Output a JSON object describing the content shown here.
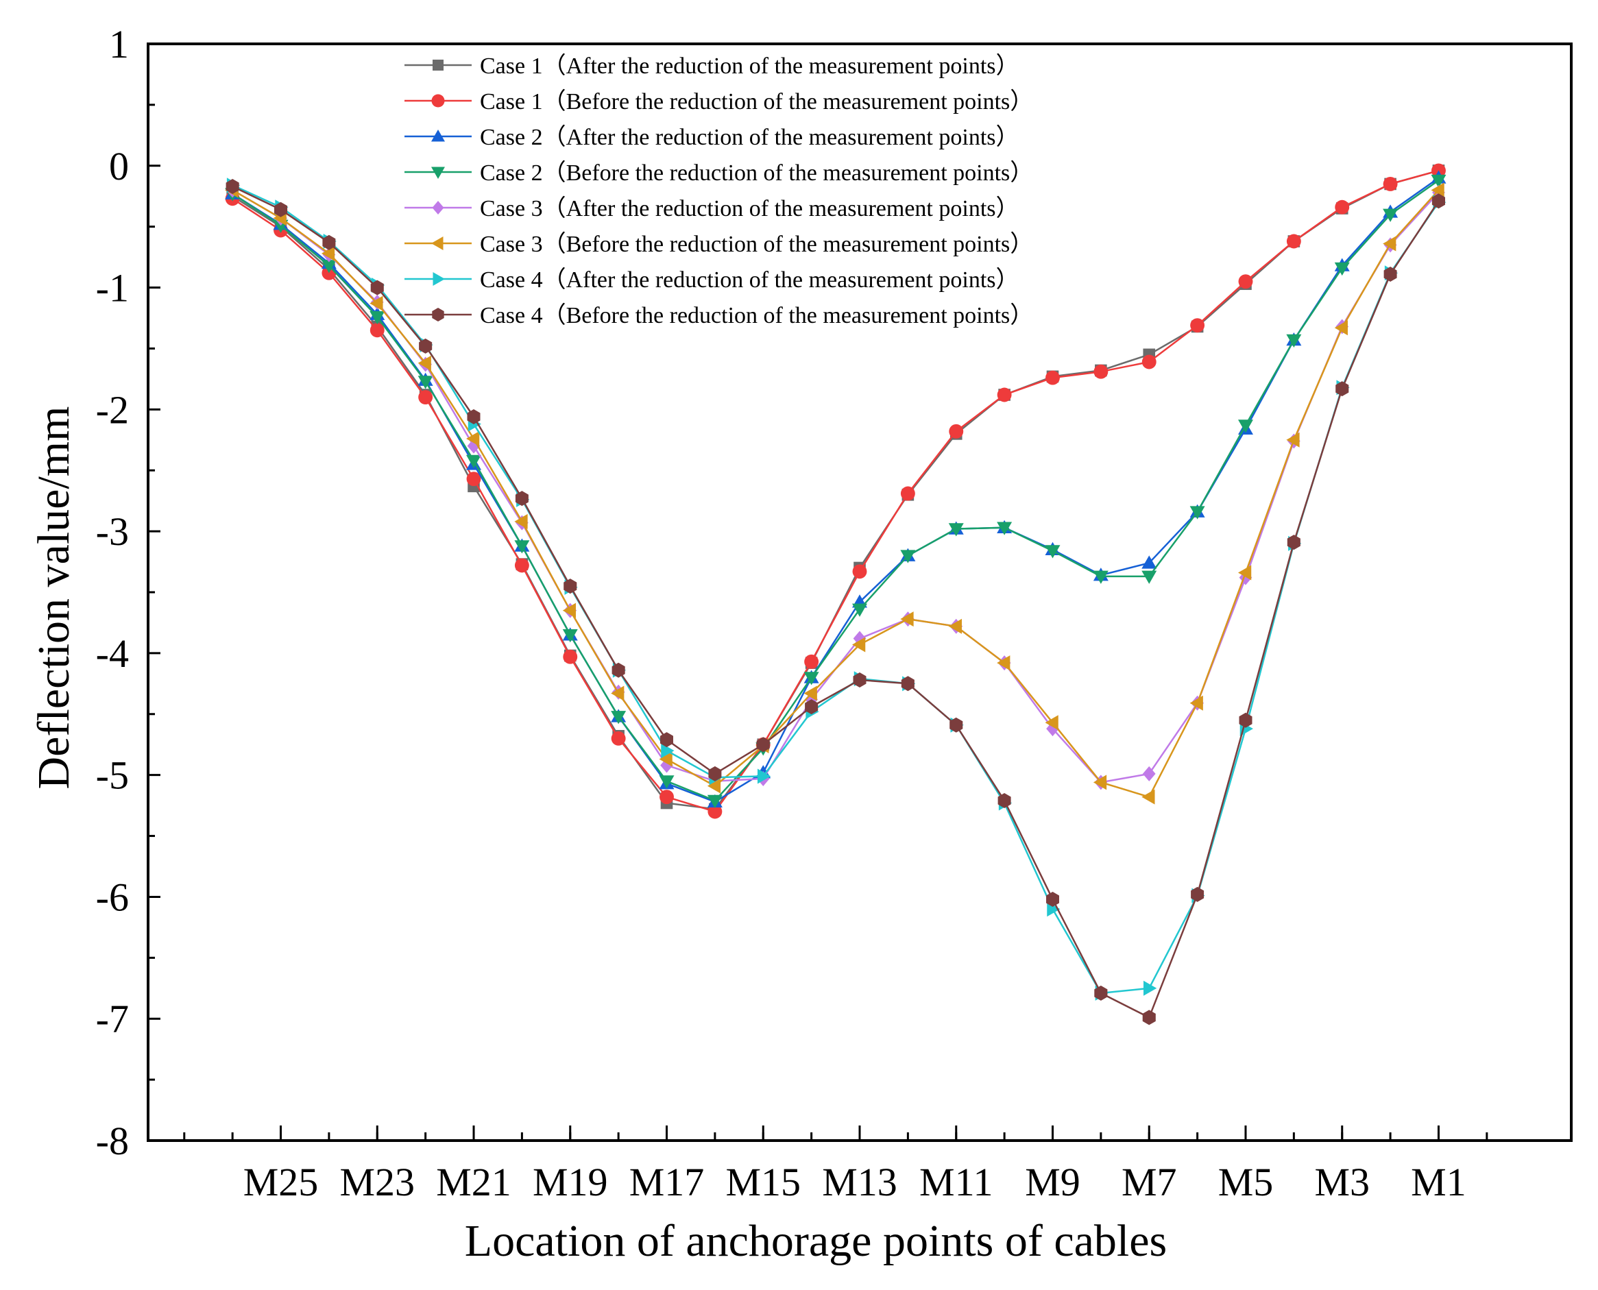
{
  "chart_data": {
    "type": "line",
    "title": "",
    "xlabel": "Location of anchorage points of cables",
    "ylabel": "Deflection value/mm",
    "ylim": [
      -8,
      1
    ],
    "yticks": [
      "1",
      "0",
      "-1",
      "-2",
      "-3",
      "-4",
      "-5",
      "-6",
      "-7",
      "-8"
    ],
    "xticks": [
      "M25",
      "M23",
      "M21",
      "M19",
      "M17",
      "M15",
      "M13",
      "M11",
      "M9",
      "M7",
      "M5",
      "M3",
      "M1"
    ],
    "x": [
      26,
      25,
      24,
      23,
      22,
      21,
      20,
      19,
      18,
      17,
      16,
      15,
      14,
      13,
      12,
      11,
      10,
      9,
      8,
      7,
      6,
      5,
      4,
      3,
      2,
      1
    ],
    "legend_position": "top-center",
    "series": [
      {
        "name": "Case 1（After the reduction of the measurement points）",
        "color": "#6b6b6b",
        "marker": "square",
        "values": [
          -0.25,
          -0.5,
          -0.85,
          -1.32,
          -1.88,
          -2.63,
          -3.27,
          -4.02,
          -4.68,
          -5.23,
          -5.28,
          -4.75,
          -4.08,
          -3.3,
          -2.7,
          -2.2,
          -1.88,
          -1.73,
          -1.68,
          -1.55,
          -1.32,
          -0.97,
          -0.62,
          -0.35,
          -0.15,
          -0.04
        ]
      },
      {
        "name": "Case 1（Before  the reduction of the measurement points）",
        "color": "#ee3b3b",
        "marker": "circle",
        "values": [
          -0.27,
          -0.53,
          -0.88,
          -1.35,
          -1.9,
          -2.57,
          -3.28,
          -4.03,
          -4.7,
          -5.18,
          -5.3,
          -4.75,
          -4.07,
          -3.33,
          -2.69,
          -2.18,
          -1.88,
          -1.74,
          -1.69,
          -1.61,
          -1.31,
          -0.95,
          -0.62,
          -0.34,
          -0.15,
          -0.04
        ]
      },
      {
        "name": "Case 2（After  the reduction of the measurement points）",
        "color": "#1560d6",
        "marker": "triangle-up",
        "values": [
          -0.23,
          -0.48,
          -0.8,
          -1.22,
          -1.76,
          -2.45,
          -3.12,
          -3.85,
          -4.52,
          -5.07,
          -5.22,
          -4.98,
          -4.2,
          -3.58,
          -3.2,
          -2.98,
          -2.97,
          -3.15,
          -3.36,
          -3.26,
          -2.84,
          -2.16,
          -1.43,
          -0.82,
          -0.38,
          -0.1
        ]
      },
      {
        "name": "Case 2（Before  the reduction of the measurement points）",
        "color": "#18a06a",
        "marker": "triangle-down",
        "values": [
          -0.23,
          -0.49,
          -0.82,
          -1.24,
          -1.77,
          -2.42,
          -3.12,
          -3.85,
          -4.52,
          -5.05,
          -5.21,
          -4.78,
          -4.2,
          -3.64,
          -3.2,
          -2.98,
          -2.97,
          -3.16,
          -3.37,
          -3.37,
          -2.84,
          -2.13,
          -1.43,
          -0.84,
          -0.4,
          -0.12
        ]
      },
      {
        "name": "Case 3（After  the reduction of the measurement points）",
        "color": "#c07ae8",
        "marker": "diamond",
        "values": [
          -0.2,
          -0.43,
          -0.73,
          -1.12,
          -1.63,
          -2.3,
          -2.93,
          -3.65,
          -4.32,
          -4.92,
          -5.05,
          -5.03,
          -4.38,
          -3.88,
          -3.72,
          -3.78,
          -4.08,
          -4.62,
          -5.06,
          -4.99,
          -4.41,
          -3.38,
          -2.26,
          -1.32,
          -0.65,
          -0.22
        ]
      },
      {
        "name": "Case 3（Before  the reduction of the measurement points）",
        "color": "#d8961c",
        "marker": "triangle-left",
        "values": [
          -0.2,
          -0.43,
          -0.72,
          -1.13,
          -1.62,
          -2.24,
          -2.92,
          -3.65,
          -4.33,
          -4.87,
          -5.09,
          -4.76,
          -4.33,
          -3.93,
          -3.72,
          -3.78,
          -4.08,
          -4.57,
          -5.06,
          -5.18,
          -4.41,
          -3.34,
          -2.25,
          -1.33,
          -0.64,
          -0.2
        ]
      },
      {
        "name": "Case 4（After  the reduction of the measurement points）",
        "color": "#22c7d0",
        "marker": "triangle-right",
        "values": [
          -0.16,
          -0.34,
          -0.62,
          -0.98,
          -1.47,
          -2.12,
          -2.74,
          -3.46,
          -4.14,
          -4.8,
          -5.02,
          -5.01,
          -4.48,
          -4.21,
          -4.25,
          -4.59,
          -5.23,
          -6.1,
          -6.79,
          -6.75,
          -5.99,
          -4.62,
          -3.1,
          -1.82,
          -0.88,
          -0.3
        ]
      },
      {
        "name": "Case 4（Before  the reduction of the measurement points）",
        "color": "#7b3d3d",
        "marker": "hexagon",
        "values": [
          -0.17,
          -0.36,
          -0.63,
          -1.0,
          -1.48,
          -2.06,
          -2.73,
          -3.45,
          -4.14,
          -4.71,
          -4.99,
          -4.75,
          -4.44,
          -4.22,
          -4.25,
          -4.59,
          -5.21,
          -6.02,
          -6.79,
          -6.99,
          -5.98,
          -4.55,
          -3.09,
          -1.83,
          -0.89,
          -0.29
        ]
      }
    ]
  }
}
